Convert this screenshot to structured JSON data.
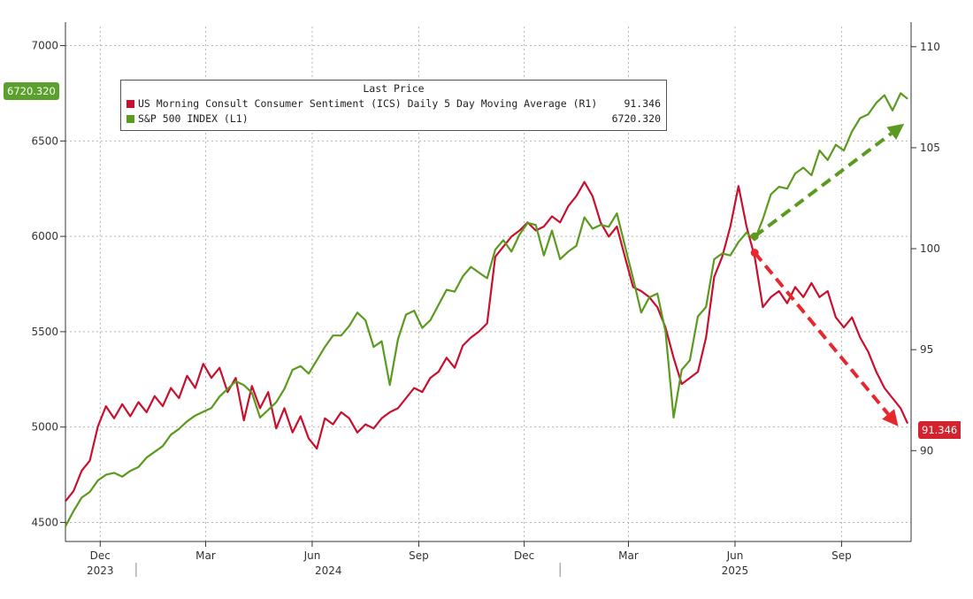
{
  "chart_data": {
    "type": "line",
    "legend": {
      "title": "Last Price",
      "placement": "top-left"
    },
    "x_tick_labels": [
      {
        "label": "Dec",
        "date": "2023-12-01"
      },
      {
        "label": "Mar",
        "date": "2024-03-01"
      },
      {
        "label": "Jun",
        "date": "2024-06-01"
      },
      {
        "label": "Sep",
        "date": "2024-09-01"
      },
      {
        "label": "Dec",
        "date": "2024-12-01"
      },
      {
        "label": "Mar",
        "date": "2025-03-01"
      },
      {
        "label": "Jun",
        "date": "2025-06-01"
      },
      {
        "label": "Sep",
        "date": "2025-09-01"
      }
    ],
    "x_year_labels": [
      {
        "label": "2023",
        "date": "2023-12-01"
      },
      {
        "label": "2024",
        "date": "2024-06-15"
      },
      {
        "label": "2025",
        "date": "2025-06-01"
      }
    ],
    "x_range": [
      "2023-11-01",
      "2025-10-31"
    ],
    "y_left": {
      "range": [
        4400,
        7100
      ],
      "ticks": [
        4500,
        5000,
        5500,
        6000,
        6500,
        7000
      ]
    },
    "y_right": {
      "range": [
        85.5,
        111
      ],
      "ticks": [
        90,
        95,
        100,
        105,
        110
      ]
    },
    "grid": true,
    "series": [
      {
        "name": "US Morning Consult Consumer Sentiment (ICS) Daily 5 Day Moving Average  (R1)",
        "axis": "right",
        "color": "#c8102e",
        "last_value": "91.346",
        "points": [
          [
            "2023-11-01",
            87.5
          ],
          [
            "2023-11-08",
            88.0
          ],
          [
            "2023-11-15",
            89.0
          ],
          [
            "2023-11-22",
            89.5
          ],
          [
            "2023-11-29",
            91.2
          ],
          [
            "2023-12-06",
            92.2
          ],
          [
            "2023-12-13",
            91.6
          ],
          [
            "2023-12-20",
            92.3
          ],
          [
            "2023-12-27",
            91.7
          ],
          [
            "2024-01-03",
            92.4
          ],
          [
            "2024-01-10",
            91.9
          ],
          [
            "2024-01-17",
            92.7
          ],
          [
            "2024-01-24",
            92.2
          ],
          [
            "2024-01-31",
            93.1
          ],
          [
            "2024-02-07",
            92.6
          ],
          [
            "2024-02-14",
            93.7
          ],
          [
            "2024-02-21",
            93.1
          ],
          [
            "2024-02-28",
            94.3
          ],
          [
            "2024-03-06",
            93.6
          ],
          [
            "2024-03-13",
            94.1
          ],
          [
            "2024-03-20",
            92.9
          ],
          [
            "2024-03-27",
            93.6
          ],
          [
            "2024-04-03",
            91.5
          ],
          [
            "2024-04-10",
            93.2
          ],
          [
            "2024-04-17",
            92.1
          ],
          [
            "2024-04-24",
            92.9
          ],
          [
            "2024-05-01",
            91.1
          ],
          [
            "2024-05-08",
            92.1
          ],
          [
            "2024-05-15",
            90.9
          ],
          [
            "2024-05-22",
            91.7
          ],
          [
            "2024-05-29",
            90.6
          ],
          [
            "2024-06-05",
            90.1
          ],
          [
            "2024-06-12",
            91.6
          ],
          [
            "2024-06-19",
            91.3
          ],
          [
            "2024-06-26",
            91.9
          ],
          [
            "2024-07-03",
            91.6
          ],
          [
            "2024-07-10",
            90.9
          ],
          [
            "2024-07-17",
            91.3
          ],
          [
            "2024-07-24",
            91.1
          ],
          [
            "2024-07-31",
            91.6
          ],
          [
            "2024-08-07",
            91.9
          ],
          [
            "2024-08-14",
            92.1
          ],
          [
            "2024-08-21",
            92.6
          ],
          [
            "2024-08-28",
            93.1
          ],
          [
            "2024-09-04",
            92.9
          ],
          [
            "2024-09-11",
            93.6
          ],
          [
            "2024-09-18",
            93.9
          ],
          [
            "2024-09-25",
            94.6
          ],
          [
            "2024-10-02",
            94.1
          ],
          [
            "2024-10-09",
            95.2
          ],
          [
            "2024-10-16",
            95.6
          ],
          [
            "2024-10-23",
            95.9
          ],
          [
            "2024-10-30",
            96.3
          ],
          [
            "2024-11-06",
            99.6
          ],
          [
            "2024-11-13",
            100.1
          ],
          [
            "2024-11-20",
            100.6
          ],
          [
            "2024-11-27",
            100.9
          ],
          [
            "2024-12-04",
            101.3
          ],
          [
            "2024-12-11",
            100.9
          ],
          [
            "2024-12-18",
            101.1
          ],
          [
            "2024-12-25",
            101.6
          ],
          [
            "2025-01-01",
            101.3
          ],
          [
            "2025-01-08",
            102.1
          ],
          [
            "2025-01-15",
            102.6
          ],
          [
            "2025-01-22",
            103.3
          ],
          [
            "2025-01-29",
            102.6
          ],
          [
            "2025-02-05",
            101.3
          ],
          [
            "2025-02-12",
            100.6
          ],
          [
            "2025-02-19",
            101.1
          ],
          [
            "2025-02-26",
            99.6
          ],
          [
            "2025-03-05",
            98.1
          ],
          [
            "2025-03-12",
            97.9
          ],
          [
            "2025-03-19",
            97.6
          ],
          [
            "2025-03-26",
            97.1
          ],
          [
            "2025-04-02",
            96.1
          ],
          [
            "2025-04-09",
            94.6
          ],
          [
            "2025-04-16",
            93.3
          ],
          [
            "2025-04-23",
            93.6
          ],
          [
            "2025-04-30",
            93.9
          ],
          [
            "2025-05-07",
            95.6
          ],
          [
            "2025-05-14",
            98.6
          ],
          [
            "2025-05-21",
            99.6
          ],
          [
            "2025-05-28",
            101.1
          ],
          [
            "2025-06-04",
            103.1
          ],
          [
            "2025-06-11",
            101.1
          ],
          [
            "2025-06-18",
            99.6
          ],
          [
            "2025-06-25",
            97.1
          ],
          [
            "2025-07-02",
            97.6
          ],
          [
            "2025-07-09",
            97.9
          ],
          [
            "2025-07-16",
            97.3
          ],
          [
            "2025-07-23",
            98.1
          ],
          [
            "2025-07-30",
            97.6
          ],
          [
            "2025-08-06",
            98.3
          ],
          [
            "2025-08-13",
            97.6
          ],
          [
            "2025-08-20",
            97.9
          ],
          [
            "2025-08-27",
            96.6
          ],
          [
            "2025-09-03",
            96.1
          ],
          [
            "2025-09-10",
            96.6
          ],
          [
            "2025-09-17",
            95.6
          ],
          [
            "2025-09-24",
            94.9
          ],
          [
            "2025-10-01",
            93.9
          ],
          [
            "2025-10-08",
            93.1
          ],
          [
            "2025-10-15",
            92.6
          ],
          [
            "2025-10-22",
            92.1
          ],
          [
            "2025-10-28",
            91.346
          ]
        ]
      },
      {
        "name": "S&P 500 INDEX  (L1)",
        "axis": "left",
        "color": "#5a9a1e",
        "last_value": "6720.320",
        "points": [
          [
            "2023-11-01",
            4480
          ],
          [
            "2023-11-08",
            4560
          ],
          [
            "2023-11-15",
            4630
          ],
          [
            "2023-11-22",
            4660
          ],
          [
            "2023-11-29",
            4720
          ],
          [
            "2023-12-06",
            4750
          ],
          [
            "2023-12-13",
            4760
          ],
          [
            "2023-12-20",
            4740
          ],
          [
            "2023-12-27",
            4770
          ],
          [
            "2024-01-03",
            4790
          ],
          [
            "2024-01-10",
            4840
          ],
          [
            "2024-01-17",
            4870
          ],
          [
            "2024-01-24",
            4900
          ],
          [
            "2024-01-31",
            4960
          ],
          [
            "2024-02-07",
            4990
          ],
          [
            "2024-02-14",
            5030
          ],
          [
            "2024-02-21",
            5060
          ],
          [
            "2024-02-28",
            5080
          ],
          [
            "2024-03-06",
            5100
          ],
          [
            "2024-03-13",
            5160
          ],
          [
            "2024-03-20",
            5200
          ],
          [
            "2024-03-27",
            5240
          ],
          [
            "2024-04-03",
            5220
          ],
          [
            "2024-04-10",
            5180
          ],
          [
            "2024-04-17",
            5050
          ],
          [
            "2024-04-24",
            5090
          ],
          [
            "2024-05-01",
            5130
          ],
          [
            "2024-05-08",
            5200
          ],
          [
            "2024-05-15",
            5300
          ],
          [
            "2024-05-22",
            5320
          ],
          [
            "2024-05-29",
            5280
          ],
          [
            "2024-06-05",
            5350
          ],
          [
            "2024-06-12",
            5420
          ],
          [
            "2024-06-19",
            5480
          ],
          [
            "2024-06-26",
            5480
          ],
          [
            "2024-07-03",
            5530
          ],
          [
            "2024-07-10",
            5600
          ],
          [
            "2024-07-17",
            5560
          ],
          [
            "2024-07-24",
            5420
          ],
          [
            "2024-07-31",
            5450
          ],
          [
            "2024-08-07",
            5220
          ],
          [
            "2024-08-14",
            5460
          ],
          [
            "2024-08-21",
            5590
          ],
          [
            "2024-08-28",
            5610
          ],
          [
            "2024-09-04",
            5520
          ],
          [
            "2024-09-11",
            5560
          ],
          [
            "2024-09-18",
            5640
          ],
          [
            "2024-09-25",
            5720
          ],
          [
            "2024-10-02",
            5710
          ],
          [
            "2024-10-09",
            5790
          ],
          [
            "2024-10-16",
            5840
          ],
          [
            "2024-10-23",
            5810
          ],
          [
            "2024-10-30",
            5780
          ],
          [
            "2024-11-06",
            5930
          ],
          [
            "2024-11-13",
            5980
          ],
          [
            "2024-11-20",
            5920
          ],
          [
            "2024-11-27",
            6010
          ],
          [
            "2024-12-04",
            6070
          ],
          [
            "2024-12-11",
            6060
          ],
          [
            "2024-12-18",
            5900
          ],
          [
            "2024-12-25",
            6030
          ],
          [
            "2025-01-01",
            5880
          ],
          [
            "2025-01-08",
            5920
          ],
          [
            "2025-01-15",
            5950
          ],
          [
            "2025-01-22",
            6100
          ],
          [
            "2025-01-29",
            6040
          ],
          [
            "2025-02-05",
            6060
          ],
          [
            "2025-02-12",
            6050
          ],
          [
            "2025-02-19",
            6120
          ],
          [
            "2025-02-26",
            5950
          ],
          [
            "2025-03-05",
            5780
          ],
          [
            "2025-03-12",
            5600
          ],
          [
            "2025-03-19",
            5680
          ],
          [
            "2025-03-26",
            5700
          ],
          [
            "2025-04-02",
            5500
          ],
          [
            "2025-04-09",
            5050
          ],
          [
            "2025-04-16",
            5300
          ],
          [
            "2025-04-23",
            5350
          ],
          [
            "2025-04-30",
            5580
          ],
          [
            "2025-05-07",
            5630
          ],
          [
            "2025-05-14",
            5880
          ],
          [
            "2025-05-21",
            5910
          ],
          [
            "2025-05-28",
            5900
          ],
          [
            "2025-06-04",
            5970
          ],
          [
            "2025-06-11",
            6020
          ],
          [
            "2025-06-18",
            5980
          ],
          [
            "2025-06-25",
            6090
          ],
          [
            "2025-07-02",
            6220
          ],
          [
            "2025-07-09",
            6260
          ],
          [
            "2025-07-16",
            6250
          ],
          [
            "2025-07-23",
            6330
          ],
          [
            "2025-07-30",
            6360
          ],
          [
            "2025-08-06",
            6320
          ],
          [
            "2025-08-13",
            6450
          ],
          [
            "2025-08-20",
            6400
          ],
          [
            "2025-08-27",
            6480
          ],
          [
            "2025-09-03",
            6450
          ],
          [
            "2025-09-10",
            6550
          ],
          [
            "2025-09-17",
            6620
          ],
          [
            "2025-09-24",
            6640
          ],
          [
            "2025-10-01",
            6700
          ],
          [
            "2025-10-08",
            6740
          ],
          [
            "2025-10-15",
            6660
          ],
          [
            "2025-10-22",
            6750
          ],
          [
            "2025-10-28",
            6720.32
          ]
        ]
      }
    ],
    "annotations": [
      {
        "type": "arrow",
        "style": "dashed",
        "color": "#5a9a1e",
        "axis": "left",
        "from": [
          "2025-06-18",
          6000
        ],
        "to": [
          "2025-10-25",
          6590
        ]
      },
      {
        "type": "arrow",
        "style": "dashed",
        "color": "#e8262e",
        "axis": "right",
        "from": [
          "2025-06-18",
          99.8
        ],
        "to": [
          "2025-10-20",
          91.2
        ]
      }
    ]
  }
}
